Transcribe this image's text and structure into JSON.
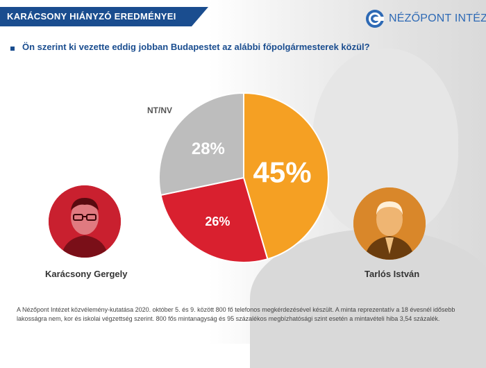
{
  "header": {
    "banner_title": "KARÁCSONY HIÁNYZÓ EREDMÉNYEI",
    "logo_text": "NÉZŐPONT INTÉZET"
  },
  "question": "Ön szerint ki vezette eddig jobban Budapestet az alábbi főpolgármesterek közül?",
  "candidates": {
    "left_name": "Karácsony Gergely",
    "right_name": "Tarlós István"
  },
  "footnote": "A Nézőpont Intézet közvélemény-kutatása 2020. október 5. és 9. között 800 fő telefonos megkérdezésével készült. A minta reprezentatív a 18 évesnél idősebb lakosságra nem, kor és iskolai végzettség szerint. 800 fős mintanagyság és 95 százalékos megbízhatósági szint esetén a mintavételi hiba 3,54 százalék.",
  "chart_data": {
    "type": "pie",
    "title": "",
    "slices": [
      {
        "name": "Tarlós István",
        "value": 45,
        "label": "45%",
        "color": "#f5a023"
      },
      {
        "name": "Karácsony Gergely",
        "value": 26,
        "label": "26%",
        "color": "#d9202f"
      },
      {
        "name": "NT/NV",
        "value": 28,
        "label": "28%",
        "color": "#bdbdbd"
      }
    ],
    "outside_label": "NT/NV"
  }
}
